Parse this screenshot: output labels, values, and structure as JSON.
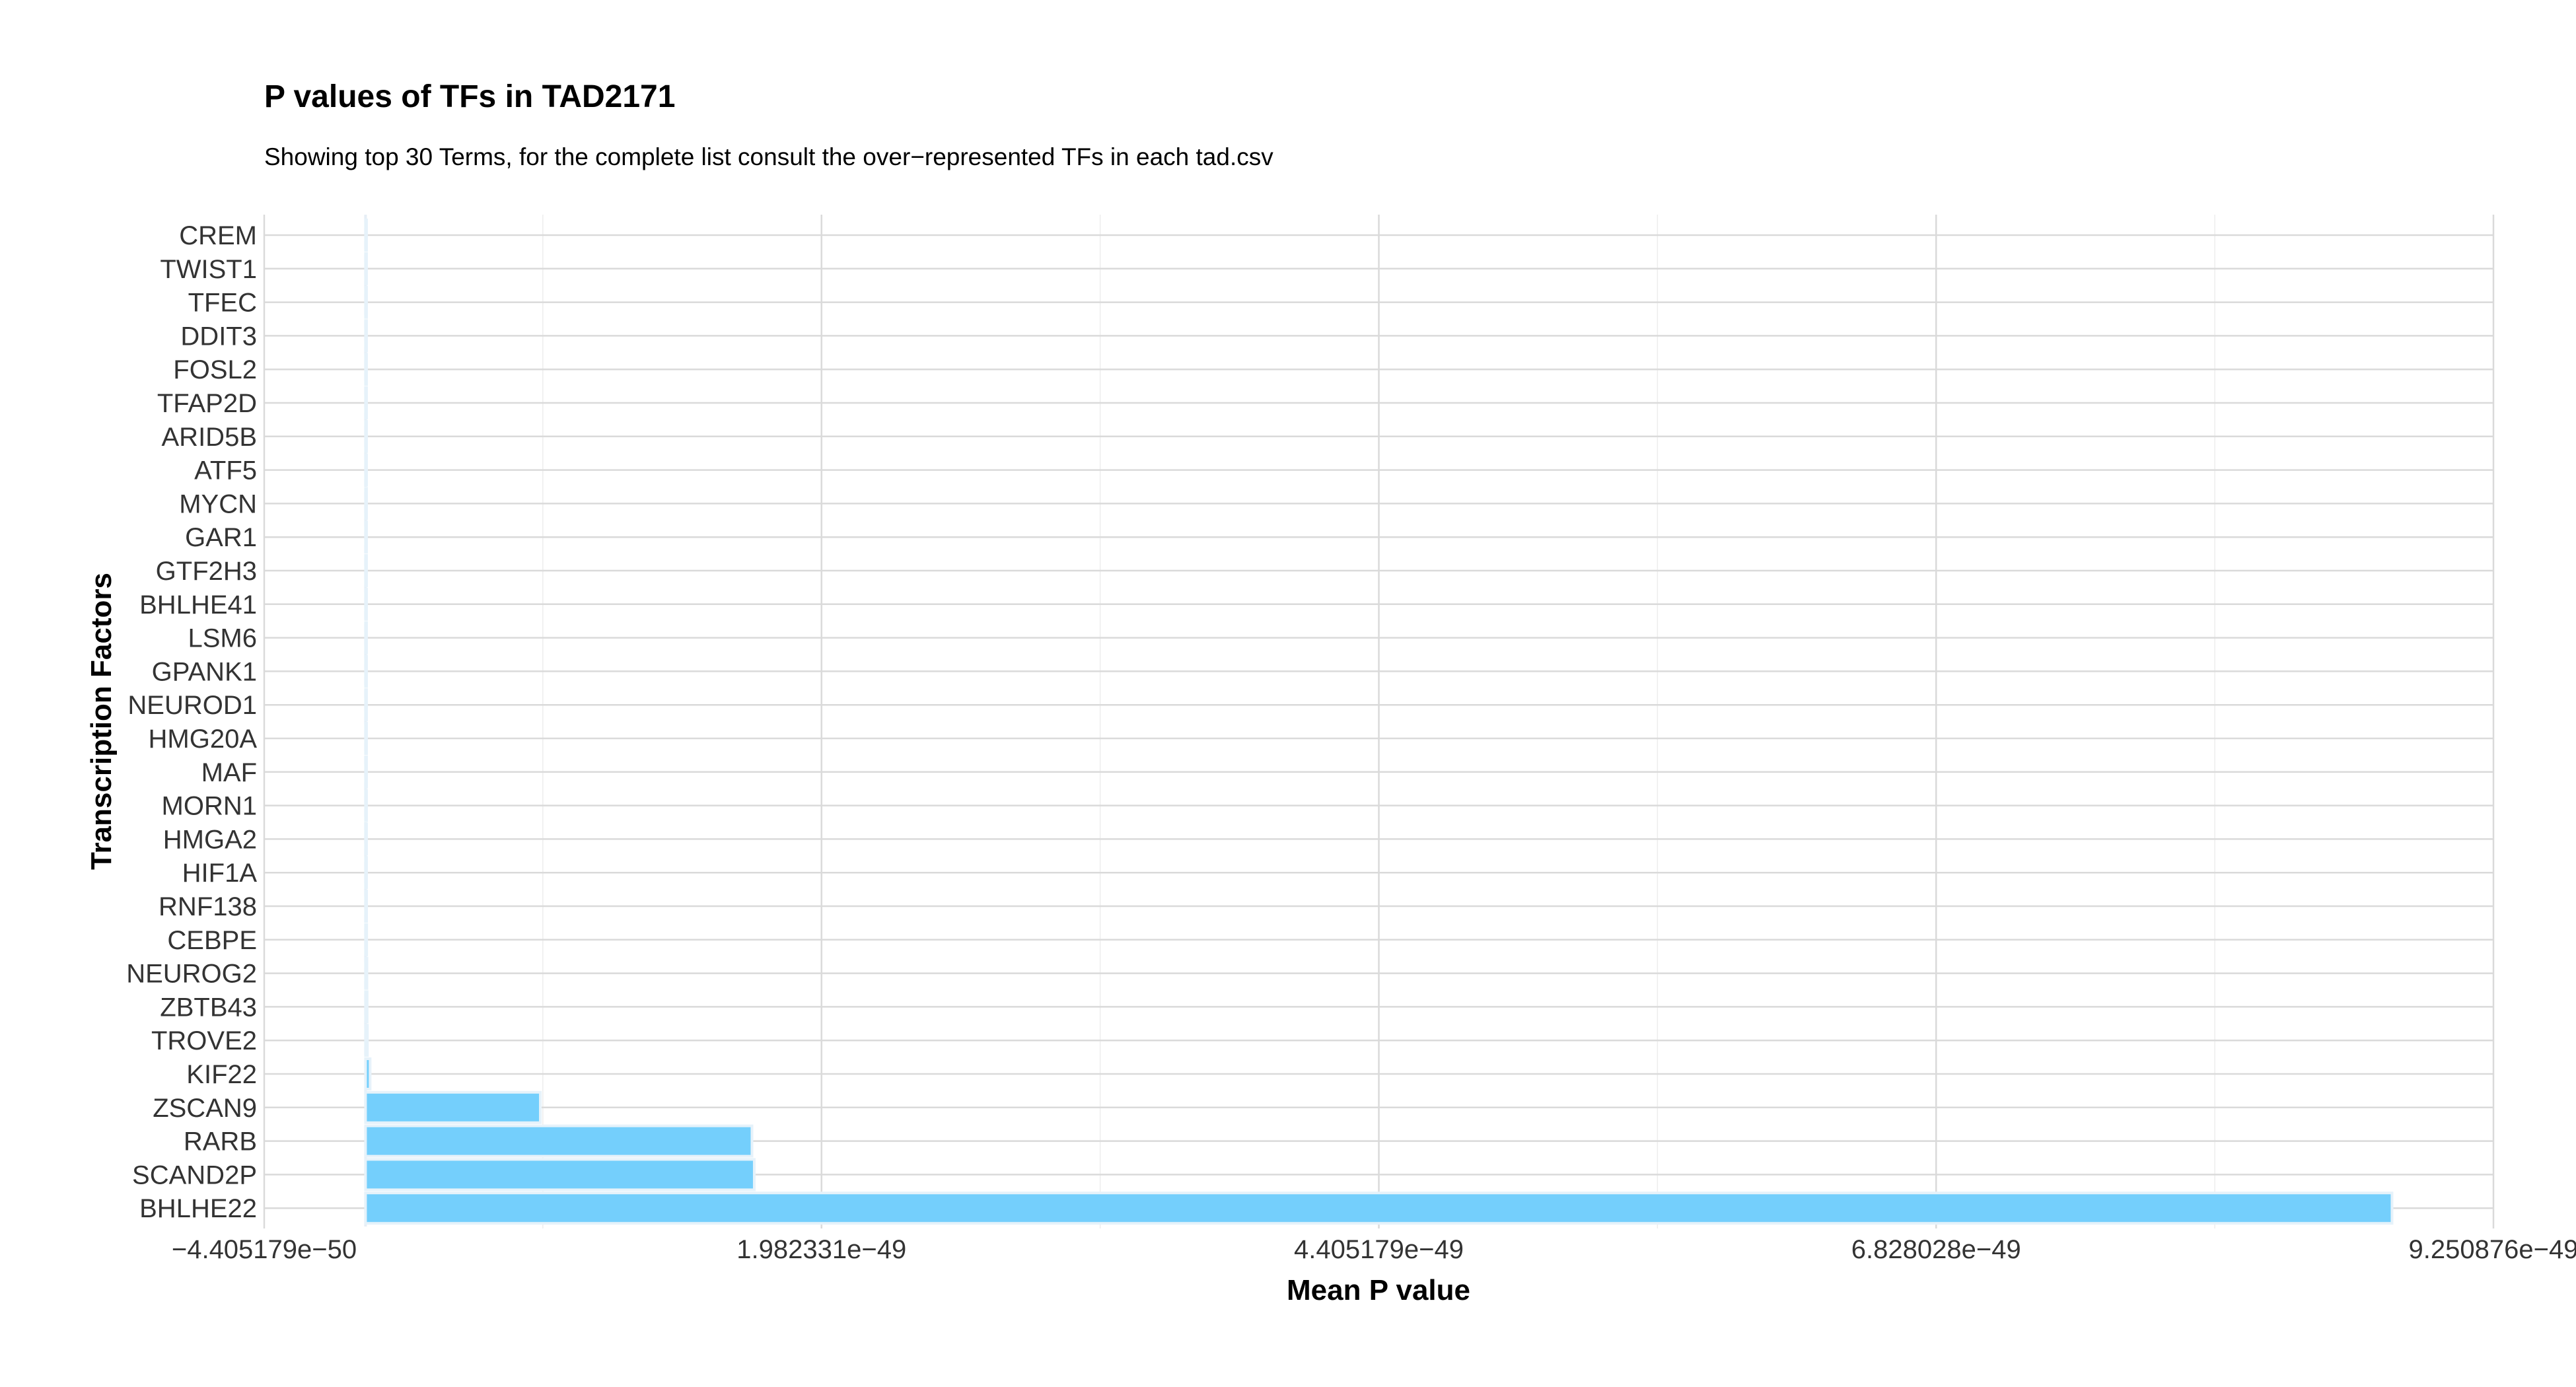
{
  "chart_data": {
    "type": "bar",
    "orientation": "horizontal",
    "title": "P values of TFs in TAD2171",
    "subtitle": "Showing top 30 Terms, for the complete list consult the over−represented TFs in each tad.csv",
    "xlabel": "Mean P value",
    "ylabel": "Transcription Factors",
    "xlim": [
      -4.405179e-50,
      9.250876e-49
    ],
    "x_ticks": [
      -4.405179e-50,
      1.982331e-49,
      4.405179e-49,
      6.828028e-49,
      9.250876e-49
    ],
    "x_tick_labels": [
      "−4.405179e−50",
      "1.982331e−49",
      "4.405179e−49",
      "6.828028e−49",
      "9.250876e−49"
    ],
    "grid": true,
    "bar_color": "#74CFFC",
    "bar_outline": "#E6F2FA",
    "categories": [
      "CREM",
      "TWIST1",
      "TFEC",
      "DDIT3",
      "FOSL2",
      "TFAP2D",
      "ARID5B",
      "ATF5",
      "MYCN",
      "GAR1",
      "GTF2H3",
      "BHLHE41",
      "LSM6",
      "GPANK1",
      "NEUROD1",
      "HMG20A",
      "MAF",
      "MORN1",
      "HMGA2",
      "HIF1A",
      "RNF138",
      "CEBPE",
      "NEUROG2",
      "ZBTB43",
      "TROVE2",
      "KIF22",
      "ZSCAN9",
      "RARB",
      "SCAND2P",
      "BHLHE22"
    ],
    "values": [
      5e-53,
      6e-53,
      7e-53,
      8e-53,
      9e-53,
      1e-52,
      1.1e-52,
      1.2e-52,
      1.3e-52,
      1.4e-52,
      1.5e-52,
      1.7e-52,
      1.9e-52,
      2.1e-52,
      2.3e-52,
      2.6e-52,
      2.9e-52,
      3.2e-52,
      3.5e-52,
      4e-52,
      4.5e-52,
      5e-52,
      6e-52,
      7e-52,
      8e-52,
      2e-51,
      7.6e-50,
      1.68e-49,
      1.69e-49,
      8.81e-49
    ]
  }
}
